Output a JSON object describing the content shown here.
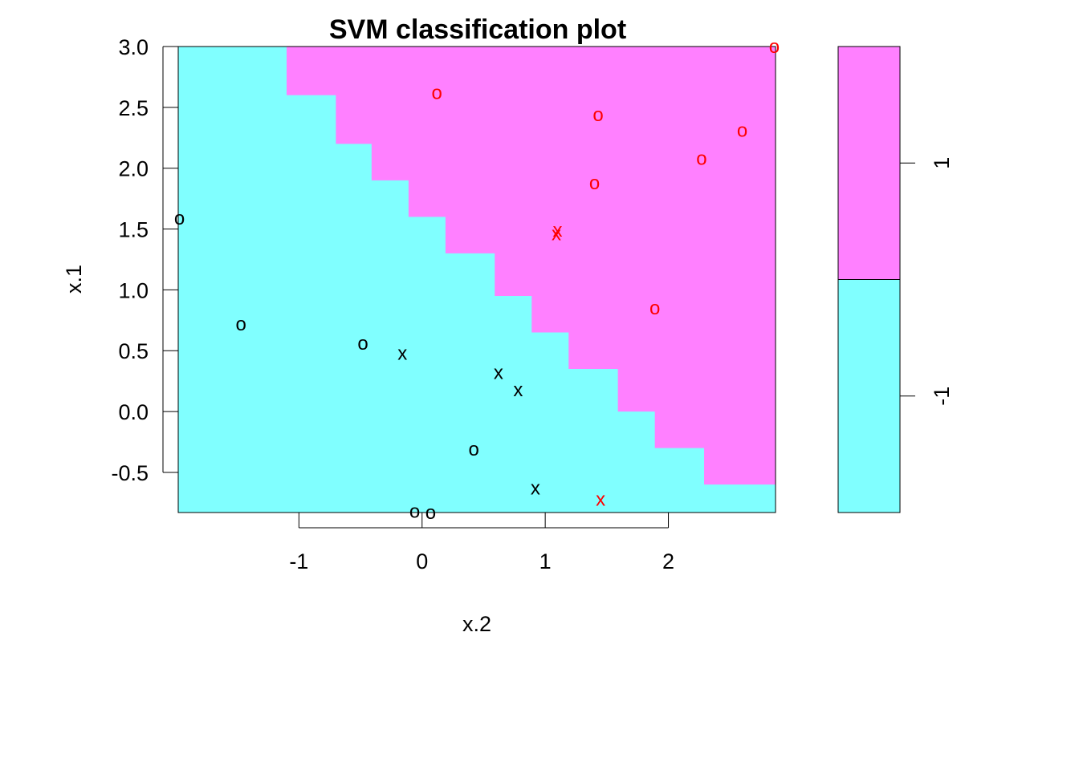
{
  "chart_data": {
    "type": "scatter",
    "title": "SVM classification plot",
    "xlabel": "x.2",
    "ylabel": "x.1",
    "xlim": [
      -1.98,
      2.87
    ],
    "ylim": [
      -0.83,
      3.0
    ],
    "x_ticks": [
      -1,
      0,
      1,
      2
    ],
    "x_tick_labels": [
      "-1",
      "0",
      "1",
      "2"
    ],
    "y_ticks": [
      -0.5,
      0.0,
      0.5,
      1.0,
      1.5,
      2.0,
      2.5,
      3.0
    ],
    "y_tick_labels": [
      "-0.5",
      "0.0",
      "0.5",
      "1.0",
      "1.5",
      "2.0",
      "2.5",
      "3.0"
    ],
    "grid": false,
    "colors": {
      "class_pos_region": "#ff80ff",
      "class_neg_region": "#80ffff",
      "class_pos_points": "#ff0000",
      "class_neg_points": "#000000"
    },
    "decision_boundary": {
      "x": [
        -1.39,
        -1.1,
        -0.7,
        -0.41,
        -0.11,
        0.19,
        0.59,
        0.89,
        1.19,
        1.59,
        1.89,
        2.29,
        2.87
      ],
      "y": [
        3.0,
        2.6,
        2.2,
        1.9,
        1.6,
        1.3,
        0.95,
        0.65,
        0.35,
        0.0,
        -0.3,
        -0.6,
        -0.83
      ]
    },
    "points": [
      {
        "x": 0.12,
        "y": 2.62,
        "symbol": "o",
        "class": "1"
      },
      {
        "x": 1.43,
        "y": 2.44,
        "symbol": "o",
        "class": "1"
      },
      {
        "x": 2.6,
        "y": 2.31,
        "symbol": "o",
        "class": "1"
      },
      {
        "x": 2.27,
        "y": 2.08,
        "symbol": "o",
        "class": "1"
      },
      {
        "x": 1.4,
        "y": 1.88,
        "symbol": "o",
        "class": "1"
      },
      {
        "x": 1.09,
        "y": 1.46,
        "symbol": "x",
        "class": "1"
      },
      {
        "x": 1.1,
        "y": 1.49,
        "symbol": "x",
        "class": "1"
      },
      {
        "x": 1.89,
        "y": 0.85,
        "symbol": "o",
        "class": "1"
      },
      {
        "x": 1.45,
        "y": -0.72,
        "symbol": "x",
        "class": "1"
      },
      {
        "x": 2.86,
        "y": 3.0,
        "symbol": "o",
        "class": "1"
      },
      {
        "x": -1.97,
        "y": 1.59,
        "symbol": "o",
        "class": "-1"
      },
      {
        "x": -1.47,
        "y": 0.72,
        "symbol": "o",
        "class": "-1"
      },
      {
        "x": -0.48,
        "y": 0.56,
        "symbol": "o",
        "class": "-1"
      },
      {
        "x": -0.16,
        "y": 0.48,
        "symbol": "x",
        "class": "-1"
      },
      {
        "x": 0.62,
        "y": 0.32,
        "symbol": "x",
        "class": "-1"
      },
      {
        "x": 0.78,
        "y": 0.18,
        "symbol": "x",
        "class": "-1"
      },
      {
        "x": 0.42,
        "y": -0.31,
        "symbol": "o",
        "class": "-1"
      },
      {
        "x": 0.92,
        "y": -0.63,
        "symbol": "x",
        "class": "-1"
      },
      {
        "x": -0.06,
        "y": -0.82,
        "symbol": "o",
        "class": "-1"
      },
      {
        "x": 0.07,
        "y": -0.83,
        "symbol": "o",
        "class": "-1"
      }
    ],
    "legend": {
      "placement": "right",
      "entries": [
        {
          "label": "1",
          "color": "#ff80ff"
        },
        {
          "label": "-1",
          "color": "#80ffff"
        }
      ]
    }
  }
}
